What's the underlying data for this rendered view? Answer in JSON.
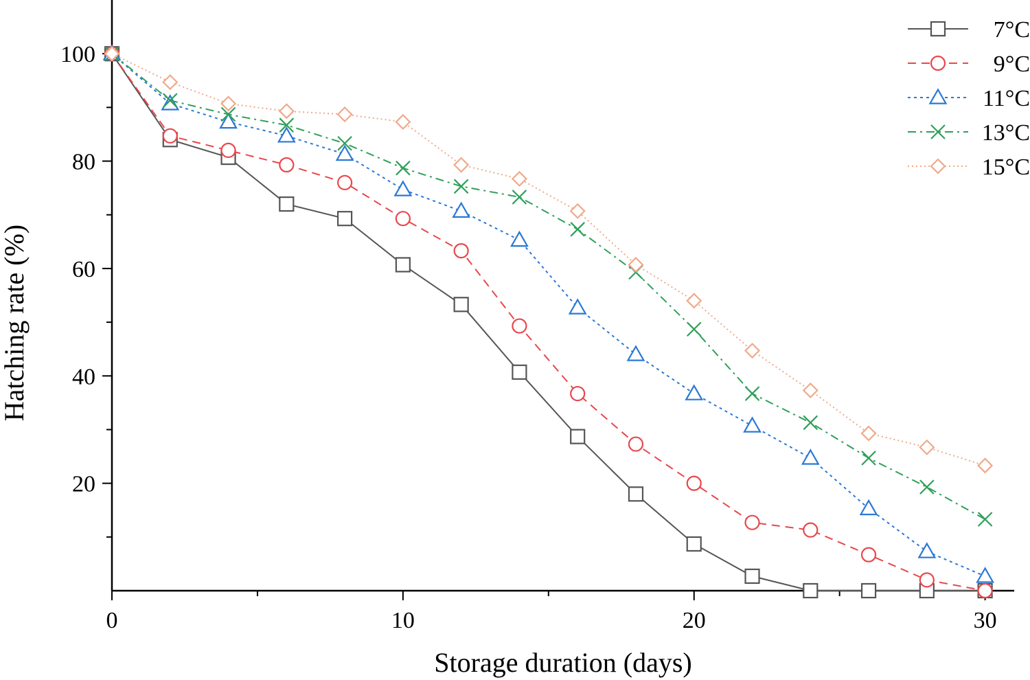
{
  "chart_data": {
    "type": "line",
    "title": "",
    "xlabel": "Storage duration (days)",
    "ylabel": "Hatching rate (%)",
    "xlim": [
      0,
      31
    ],
    "ylim": [
      0,
      110
    ],
    "xticks": [
      0,
      10,
      20,
      30
    ],
    "yticks": [
      20,
      40,
      60,
      80,
      100
    ],
    "x": [
      0,
      2,
      4,
      6,
      8,
      10,
      12,
      14,
      16,
      18,
      20,
      22,
      24,
      26,
      28,
      30
    ],
    "legend_position": "top-right",
    "grid": false,
    "series": [
      {
        "name": "7°C",
        "color": "#555555",
        "dash": "solid",
        "marker": "square",
        "values": [
          100,
          84,
          80.7,
          72,
          69.3,
          60.7,
          53.3,
          40.7,
          28.7,
          18,
          8.7,
          2.7,
          0,
          0,
          0,
          0
        ]
      },
      {
        "name": "9°C",
        "color": "#e8474c",
        "dash": "dashed",
        "marker": "circle",
        "values": [
          100,
          84.7,
          82,
          79.3,
          76,
          69.3,
          63.3,
          49.3,
          36.7,
          27.3,
          20,
          12.7,
          11.3,
          6.7,
          2,
          0
        ]
      },
      {
        "name": "11°C",
        "color": "#2a78d6",
        "dash": "dotted",
        "marker": "triangle",
        "values": [
          100,
          90.7,
          87.3,
          84.7,
          81.3,
          74.7,
          70.7,
          65.3,
          52.7,
          44,
          36.7,
          30.7,
          24.7,
          15.3,
          7.3,
          2.7
        ]
      },
      {
        "name": "13°C",
        "color": "#2ea05a",
        "dash": "dashdot",
        "marker": "x",
        "values": [
          100,
          91.3,
          88.7,
          86.7,
          83.3,
          78.7,
          75.3,
          73.3,
          67.3,
          59.3,
          48.7,
          36.7,
          31.3,
          24.7,
          19.3,
          13.3
        ]
      },
      {
        "name": "15°C",
        "color": "#f0a98a",
        "dash": "finedot",
        "marker": "diamond",
        "values": [
          100,
          94.7,
          90.7,
          89.3,
          88.7,
          87.3,
          79.3,
          76.7,
          70.7,
          60.7,
          54,
          44.7,
          37.3,
          29.3,
          26.7,
          23.3
        ]
      }
    ]
  }
}
